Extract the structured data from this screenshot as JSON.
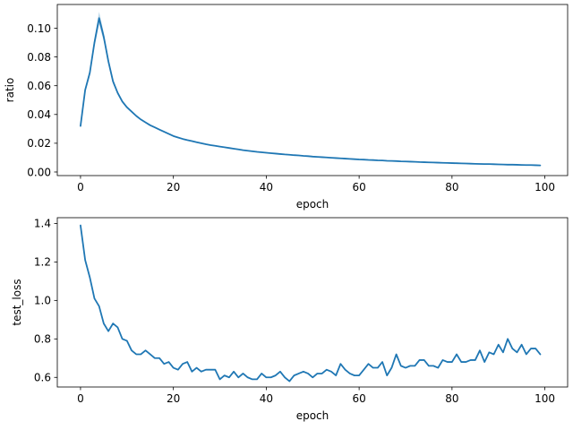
{
  "chart_data": [
    {
      "type": "line",
      "title": "",
      "xlabel": "epoch",
      "ylabel": "ratio",
      "xlim": [
        -5,
        104.9
      ],
      "ylim": [
        -0.0025,
        0.1165
      ],
      "xticks": [
        0,
        20,
        40,
        60,
        80,
        100
      ],
      "xtick_labels": [
        "0",
        "20",
        "40",
        "60",
        "80",
        "100"
      ],
      "yticks": [
        0.0,
        0.02,
        0.04,
        0.06,
        0.08,
        0.1
      ],
      "ytick_labels": [
        "0.00",
        "0.02",
        "0.04",
        "0.06",
        "0.08",
        "0.10"
      ],
      "grid": false,
      "color": "#1f77b4",
      "series": [
        {
          "x": [
            0,
            1,
            2,
            3,
            4,
            5,
            6,
            7,
            8,
            9,
            10,
            11,
            12,
            13,
            14,
            15,
            16,
            17,
            18,
            19,
            20,
            21,
            22,
            23,
            24,
            25,
            26,
            27,
            28,
            29,
            30,
            31,
            32,
            33,
            34,
            35,
            36,
            37,
            38,
            39,
            40,
            41,
            42,
            43,
            44,
            45,
            46,
            47,
            48,
            49,
            50,
            51,
            52,
            53,
            54,
            55,
            56,
            57,
            58,
            59,
            60,
            61,
            62,
            63,
            64,
            65,
            66,
            67,
            68,
            69,
            70,
            71,
            72,
            73,
            74,
            75,
            76,
            77,
            78,
            79,
            80,
            81,
            82,
            83,
            84,
            85,
            86,
            87,
            88,
            89,
            90,
            91,
            92,
            93,
            94,
            95,
            96,
            97,
            98,
            99
          ],
          "y": [
            0.032,
            0.057,
            0.069,
            0.09,
            0.107,
            0.094,
            0.077,
            0.063,
            0.055,
            0.049,
            0.045,
            0.042,
            0.039,
            0.0365,
            0.0345,
            0.0325,
            0.031,
            0.0295,
            0.028,
            0.0265,
            0.025,
            0.024,
            0.023,
            0.0222,
            0.0215,
            0.0207,
            0.02,
            0.0193,
            0.0187,
            0.0182,
            0.0177,
            0.0172,
            0.0167,
            0.0162,
            0.0157,
            0.0152,
            0.0148,
            0.0144,
            0.014,
            0.0137,
            0.0134,
            0.0131,
            0.0128,
            0.0125,
            0.0122,
            0.012,
            0.0117,
            0.0115,
            0.0112,
            0.011,
            0.0107,
            0.0105,
            0.0103,
            0.0101,
            0.0099,
            0.0097,
            0.0095,
            0.0093,
            0.0091,
            0.0089,
            0.0087,
            0.0086,
            0.0084,
            0.0083,
            0.0081,
            0.008,
            0.0078,
            0.0077,
            0.0076,
            0.0074,
            0.0073,
            0.0072,
            0.0071,
            0.0069,
            0.0068,
            0.0067,
            0.0066,
            0.0065,
            0.0064,
            0.0063,
            0.0062,
            0.0061,
            0.006,
            0.0059,
            0.0058,
            0.0057,
            0.0056,
            0.0055,
            0.0055,
            0.0054,
            0.0053,
            0.0052,
            0.0051,
            0.0051,
            0.005,
            0.0049,
            0.0048,
            0.0048,
            0.0047,
            0.0046
          ],
          "band_halfwidth_peak": 0.004
        }
      ]
    },
    {
      "type": "line",
      "title": "",
      "xlabel": "epoch",
      "ylabel": "test_loss",
      "xlim": [
        -5,
        104.9
      ],
      "ylim": [
        0.55,
        1.43
      ],
      "xticks": [
        0,
        20,
        40,
        60,
        80,
        100
      ],
      "xtick_labels": [
        "0",
        "20",
        "40",
        "60",
        "80",
        "100"
      ],
      "yticks": [
        0.6,
        0.8,
        1.0,
        1.2,
        1.4
      ],
      "ytick_labels": [
        "0.6",
        "0.8",
        "1.0",
        "1.2",
        "1.4"
      ],
      "grid": false,
      "color": "#1f77b4",
      "series": [
        {
          "x": [
            0,
            1,
            2,
            3,
            4,
            5,
            6,
            7,
            8,
            9,
            10,
            11,
            12,
            13,
            14,
            15,
            16,
            17,
            18,
            19,
            20,
            21,
            22,
            23,
            24,
            25,
            26,
            27,
            28,
            29,
            30,
            31,
            32,
            33,
            34,
            35,
            36,
            37,
            38,
            39,
            40,
            41,
            42,
            43,
            44,
            45,
            46,
            47,
            48,
            49,
            50,
            51,
            52,
            53,
            54,
            55,
            56,
            57,
            58,
            59,
            60,
            61,
            62,
            63,
            64,
            65,
            66,
            67,
            68,
            69,
            70,
            71,
            72,
            73,
            74,
            75,
            76,
            77,
            78,
            79,
            80,
            81,
            82,
            83,
            84,
            85,
            86,
            87,
            88,
            89,
            90,
            91,
            92,
            93,
            94,
            95,
            96,
            97,
            98,
            99
          ],
          "y": [
            1.39,
            1.21,
            1.12,
            1.01,
            0.97,
            0.88,
            0.84,
            0.88,
            0.86,
            0.8,
            0.79,
            0.74,
            0.72,
            0.72,
            0.74,
            0.72,
            0.7,
            0.7,
            0.67,
            0.68,
            0.65,
            0.64,
            0.67,
            0.68,
            0.63,
            0.65,
            0.63,
            0.64,
            0.64,
            0.64,
            0.59,
            0.61,
            0.6,
            0.63,
            0.6,
            0.62,
            0.6,
            0.59,
            0.59,
            0.62,
            0.6,
            0.6,
            0.61,
            0.63,
            0.6,
            0.58,
            0.61,
            0.62,
            0.63,
            0.62,
            0.6,
            0.62,
            0.62,
            0.64,
            0.63,
            0.61,
            0.67,
            0.64,
            0.62,
            0.61,
            0.61,
            0.64,
            0.67,
            0.65,
            0.65,
            0.68,
            0.61,
            0.65,
            0.72,
            0.66,
            0.65,
            0.66,
            0.66,
            0.69,
            0.69,
            0.66,
            0.66,
            0.65,
            0.69,
            0.68,
            0.68,
            0.72,
            0.68,
            0.68,
            0.69,
            0.69,
            0.74,
            0.68,
            0.73,
            0.72,
            0.77,
            0.73,
            0.8,
            0.75,
            0.73,
            0.77,
            0.72,
            0.75,
            0.75,
            0.72
          ]
        }
      ]
    }
  ]
}
